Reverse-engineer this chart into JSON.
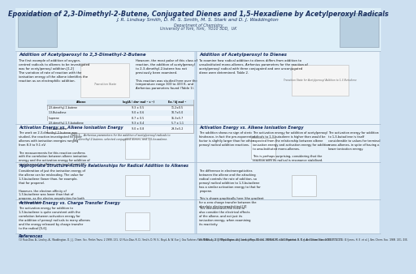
{
  "title": "Epoxidation of 2,3-Dimethyl-2-Butene, Conjugated Dienes and 1,5-Hexadiene by Acetylperoxyl Radicals",
  "authors": "J. R. Lindsay Smith, D. M. S. Smith, M. S. Stark and D. J. Waddington",
  "department": "Department of Chemistry",
  "university": "University of York, York,  YO10 5DD,  UK",
  "bg_color": "#ccdff0",
  "title_color": "#1a3060",
  "section_title_color": "#1a3060",
  "body_text_color": "#111111",
  "white_panel": "#e8f2fa",
  "left_col_title": "Addition of Acetylperoxyl to 2,3-Dimethyl-2-Butene",
  "left_text_a": "The first example of addition of oxygen-\ncentred radicals to alkenes to be investigated\nwas for acetylperoxyl addition.[1,2]\nThe variation of rate of reaction with the\nionisation energy of the alkene identifies the\nreaction as an electrophilic addition.",
  "left_text_b": "However, the most polar of this class of\nreaction, the addition of acetylperoxyl\nto 2,3-dimethyl-2-butene has not\npreviously been examined.\n\nThis reaction was studied here over the\ntemperature range 303 to 433 K, and\nArrhenius parameters found (Table 1).",
  "ts_caption_left": "Transition State",
  "table_headers": [
    "Alkene",
    "log(A / dm³ mol⁻¹ s⁻¹)",
    "Ea / kJ mol⁻¹"
  ],
  "table_rows": [
    [
      "2,3-dimethyl-2-butene",
      "9.3 ± 0.5",
      "11.2±0.5"
    ],
    [
      "1,3-Butadiene",
      "9.0 ± 0.6",
      "10.7±5.0"
    ],
    [
      "Isoprene",
      "8.7 ± 0.5",
      "15.3±5.7"
    ],
    [
      "2,3-dimethyl-1,3-butadiene",
      "9.3 ± 0.4",
      "5.7 ± 1.1"
    ],
    [
      "1,5-Hexadiene",
      "9.0 ± 0.8",
      "29.3±5.2"
    ]
  ],
  "table_caption": "Table 1:   Arrhenius parameters for the addition of acetylperoxyl radicals to\n2,3-dimethyl-2-butene, selected conjugated dienes, and 1,5-hexadiene.",
  "right_col_title": "Addition of Acetylperoxyl to Dienes",
  "right_text_a": "To examine how radical addition to dienes differs from addition to\nunsubstituted mono-alkenes, Arrhenius parameters for the reaction of\nacetylperoxyl radical with three conjugated and one unconjugated\ndiene were determined. Table 2.",
  "ts_caption_right": "Transition State for Acetylperoxyl Addition to 1,3-Butadiene",
  "s2_left_title": "Activation Energy vs. Alkene Ionisation Energy",
  "s2_left_text": "The work on 2,3-dimethyl-2-butene was\nstudied, the reaction investigated to cover\nalkenes with ionisation energies ranging\nfrom 8.3 to 9.1 eV.\n\nThe measurements for this reaction confirms\nwith the correlation between alkene ionisation\nenergy and the activation energy for addition of\nacetylperoxyl to alkenes previously found.[3]",
  "s2_mid_text": "The addition shows no sign of steric\nhindrance, in fact the pre-exponential\nfactor is slightly larger than for other\nperoxyl radical addition reactions.",
  "s2_right_title": "Activation Energy vs. Alkene Ionisation Energy",
  "s2_right_text": "The activation energy for addition of acetylperoxyl\nradicals to 1,3-butadiene is higher than would be\nexpected from the relationship between alkene\nionisation energy and activation energy for addition\nto unsubstituted mono-alkenes.\n\nThis is perhaps surprising, considering that the\nreaction with its radical is resonance stabilised.",
  "s2_far_right_text": "The activation energy for addition\nto 1,3-butadiene is itself\nconsiderable to values for terminal\nmono-alkenes, in spite of having a\nlower ionisation energy.",
  "s3_left_title": "Appropriate Structure-Activity Relationships for Radical Addition to Alkenes",
  "s3_left_text": "Consideration of just the ionisation energy of\nthe alkene can be misleading. The value for\n1,3-butadiene (lower than, for example,\nthat for propene).\n\nHowever, the electron affinity of\n1,3-butadiene was lower than that of\npropene, as the electro-negativities for both\nare comparable.",
  "s3_right_text": "The difference in electronegativities\nbetween the alkene and the attacking\nradical controls the rate of addition, so\nperoxyl radical addition to 1,3-butadiene\nhas a similar activation energy to that for\npropene.\n\nThis is shown graphically here (the gradient\nfor a zero charge transfer between the\nabsolute electronegativities).[4]",
  "s4_left_title": "Activation Energy vs. Charge Transfer Energy",
  "s4_left_text": "The activation energy for addition to\n1,3-butadiene is quite consistent with the\ncorrelation between activation energy for\nthe addition of peroxyl radicals to many alkenes\nand the energy released by charge transfer\nto the radical.[5,6].",
  "s4_right_text": "This demonstrates the need to\nalso consider the electrical effects\nof the alkene, and not just its\nionisation energy, when examining\nits reactivity.",
  "ref_title": "References",
  "ref_left": "(1) Ruiz-Diaz, A.; Lindley, A.; Waddington, D. J. J. Chem. Soc. Perkin Trans. 2 1999, 131. (2) Ruiz-Diaz, R. D.; Smith, D. M. S.; Boyd, A. W. Eur. J. Gas Turbines Paris 1981, 1, 1. (3) Waddington, D. J. et al. J. Phys. Chem. 1988, 92, 1. (4) Kirkpatrick, E. F. et al. Electro Science 2003, 101 1.",
  "ref_right": "(5) McAmory, E. J. Phys. Chem. and Combustion, 48, 111. (6) Nel, M. et al.; Thatcher, S. D. J. Am. Chem. Soc. 1993, 777, 770. (4) Jones, H. E. et al. J. Am. Chem. Soc. 1988, 101, 100."
}
